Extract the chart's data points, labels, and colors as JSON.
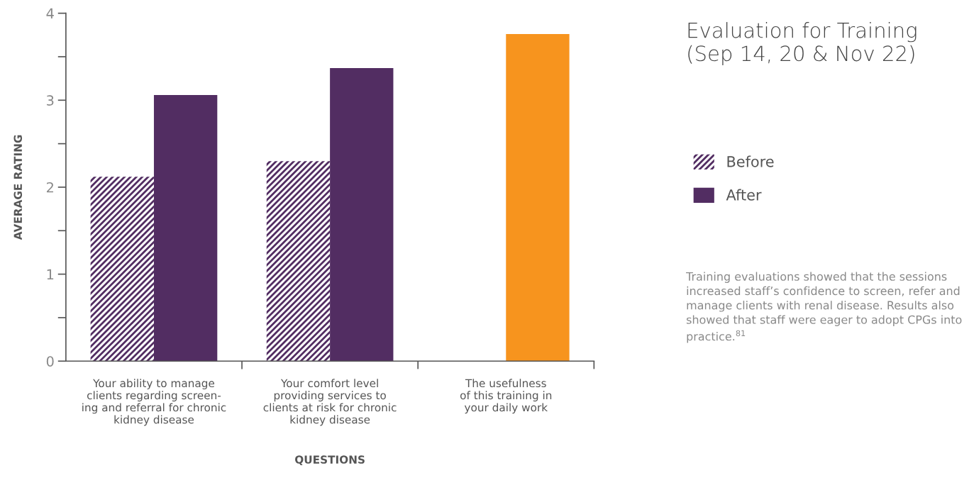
{
  "chart_data": {
    "type": "bar",
    "title": "Evaluation for Training\n(Sep 14, 20 & Nov 22)",
    "xlabel": "QUESTIONS",
    "ylabel": "AVERAGE RATING",
    "categories": [
      "Your ability to manage\nclients regarding screen-\ning and referral for chronic\nkidney disease",
      "Your comfort level\nproviding services to\nclients at risk for chronic\nkidney disease",
      "The usefulness\nof this training in\nyour daily work"
    ],
    "series": [
      {
        "name": "Before",
        "color": "#522d62",
        "values": [
          2.12,
          2.3,
          null
        ]
      },
      {
        "name": "After",
        "color": "#522d62",
        "colors": [
          "#522d62",
          "#522d62",
          "#f7941e"
        ],
        "values": [
          3.06,
          3.37,
          3.76
        ]
      }
    ],
    "ylim": [
      0,
      4
    ],
    "yticks": [
      0,
      {
        "value": 0.5,
        "label": null
      },
      1,
      {
        "value": 1.5,
        "label": null
      },
      2,
      {
        "value": 2.5,
        "label": null
      },
      3,
      {
        "value": 3.5,
        "label": null
      },
      4
    ],
    "grid": false,
    "legend": "right",
    "annotations": [
      "Training evaluations showed that the sessions increased staff’s confidence to screen, refer and manage clients with renal disease. Results also showed that staff were eager to adopt CPGs into practice.$^{81}$"
    ]
  }
}
